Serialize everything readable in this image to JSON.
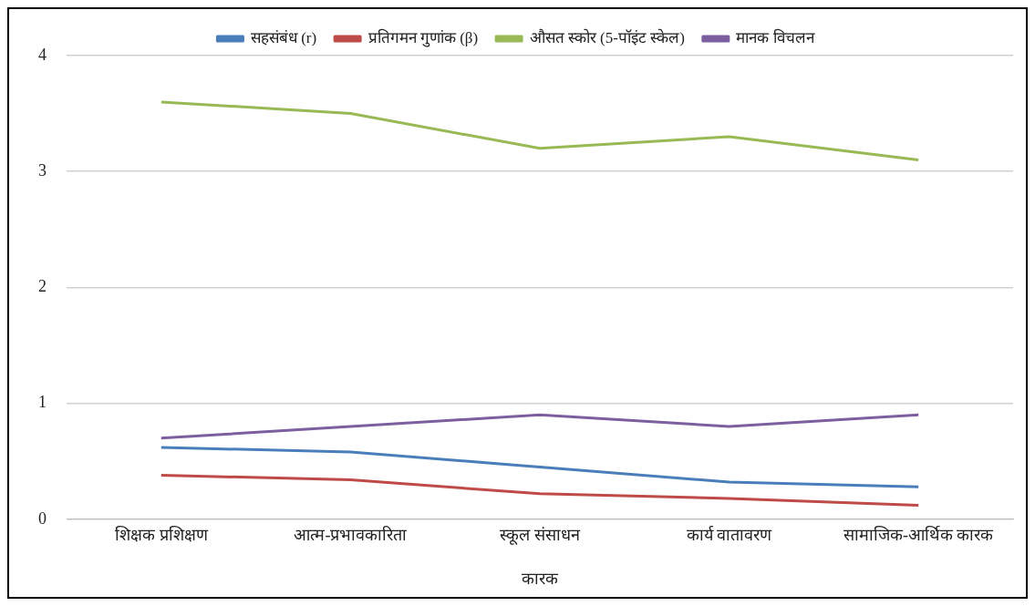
{
  "chart_data": {
    "type": "line",
    "xlabel": "कारक",
    "categories": [
      "शिक्षक प्रशिक्षण",
      "आत्म-प्रभावकारिता",
      "स्कूल संसाधन",
      "कार्य वातावरण",
      "सामाजिक-आर्थिक कारक"
    ],
    "series": [
      {
        "name": "सहसंबंध (r)",
        "color": "#4a7ebb",
        "values": [
          0.62,
          0.58,
          0.45,
          0.32,
          0.28
        ]
      },
      {
        "name": "प्रतिगमन गुणांक (β)",
        "color": "#be4b48",
        "values": [
          0.38,
          0.34,
          0.22,
          0.18,
          0.12
        ]
      },
      {
        "name": "औसत स्कोर (5-पॉइंट स्केल)",
        "color": "#98b954",
        "values": [
          3.6,
          3.5,
          3.2,
          3.3,
          3.1
        ]
      },
      {
        "name": "मानक विचलन",
        "color": "#7d5fa0",
        "values": [
          0.7,
          0.8,
          0.9,
          0.8,
          0.9
        ]
      }
    ],
    "ylim": [
      0,
      4
    ],
    "yticks": [
      0,
      1,
      2,
      3,
      4
    ],
    "grid": "y",
    "legend": "top",
    "marker": "none",
    "line_style": "solid"
  }
}
